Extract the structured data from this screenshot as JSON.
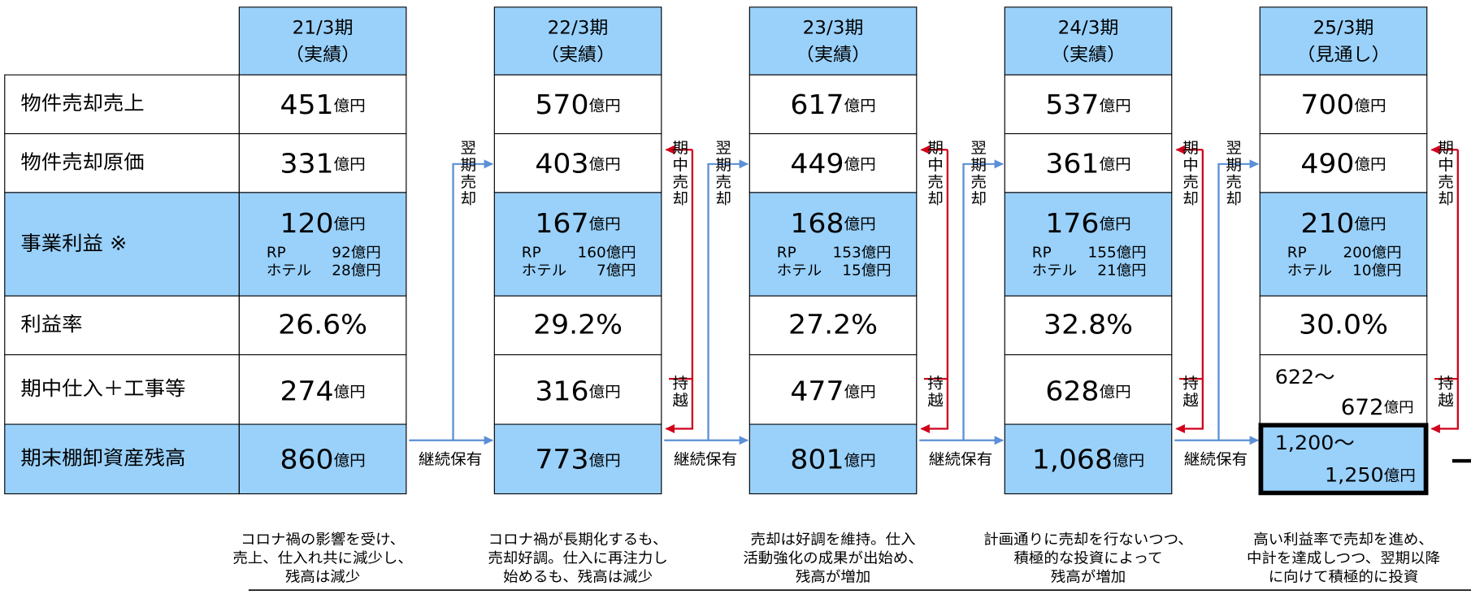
{
  "row_labels": [
    "物件売却売上",
    "物件売却原価",
    "事業利益 ※",
    "利益率",
    "期中仕入＋工事等",
    "期末棚卸資産残高"
  ],
  "flow_labels": {
    "next_sale": "翌期売却",
    "mid_sale": "期中売却",
    "carry": "持越",
    "hold": "継続保有"
  },
  "columns": [
    {
      "period": "21/3期",
      "status": "（実績）",
      "sales": {
        "value": "451",
        "unit": "億円"
      },
      "cost": {
        "value": "331",
        "unit": "億円"
      },
      "profit": {
        "value": "120",
        "unit": "億円",
        "rp_label": "RP",
        "rp_value": "92億円",
        "hotel_label": "ホテル",
        "hotel_value": "28億円"
      },
      "margin": "26.6%",
      "purchase": {
        "value": "274",
        "unit": "億円"
      },
      "stock": {
        "value": "860",
        "unit": "億円"
      },
      "note": [
        "コロナ禍の影響を受け、",
        "売上、仕入れ共に減少し、",
        "残高は減少"
      ]
    },
    {
      "period": "22/3期",
      "status": "（実績）",
      "sales": {
        "value": "570",
        "unit": "億円"
      },
      "cost": {
        "value": "403",
        "unit": "億円"
      },
      "profit": {
        "value": "167",
        "unit": "億円",
        "rp_label": "RP",
        "rp_value": "160億円",
        "hotel_label": "ホテル",
        "hotel_value": "7億円"
      },
      "margin": "29.2%",
      "purchase": {
        "value": "316",
        "unit": "億円"
      },
      "stock": {
        "value": "773",
        "unit": "億円"
      },
      "note": [
        "コロナ禍が長期化するも、",
        "売却好調。仕入に再注力し",
        "始めるも、残高は減少"
      ]
    },
    {
      "period": "23/3期",
      "status": "（実績）",
      "sales": {
        "value": "617",
        "unit": "億円"
      },
      "cost": {
        "value": "449",
        "unit": "億円"
      },
      "profit": {
        "value": "168",
        "unit": "億円",
        "rp_label": "RP",
        "rp_value": "153億円",
        "hotel_label": "ホテル",
        "hotel_value": "15億円"
      },
      "margin": "27.2%",
      "purchase": {
        "value": "477",
        "unit": "億円"
      },
      "stock": {
        "value": "801",
        "unit": "億円"
      },
      "note": [
        "売却は好調を維持。仕入",
        "活動強化の成果が出始め、",
        "残高が増加"
      ]
    },
    {
      "period": "24/3期",
      "status": "（実績）",
      "sales": {
        "value": "537",
        "unit": "億円"
      },
      "cost": {
        "value": "361",
        "unit": "億円"
      },
      "profit": {
        "value": "176",
        "unit": "億円",
        "rp_label": "RP",
        "rp_value": "155億円",
        "hotel_label": "ホテル",
        "hotel_value": "21億円"
      },
      "margin": "32.8%",
      "purchase": {
        "value": "628",
        "unit": "億円"
      },
      "stock": {
        "value": "1,068",
        "unit": "億円"
      },
      "note": [
        "計画通りに売却を行ないつつ、",
        "積極的な投資によって",
        "残高が増加"
      ]
    },
    {
      "period": "25/3期",
      "status": "（見通し）",
      "sales": {
        "value": "700",
        "unit": "億円"
      },
      "cost": {
        "value": "490",
        "unit": "億円"
      },
      "profit": {
        "value": "210",
        "unit": "億円",
        "rp_label": "RP",
        "rp_value": "200億円",
        "hotel_label": "ホテル",
        "hotel_value": "10億円"
      },
      "margin": "30.0%",
      "purchase": {
        "from": "622～",
        "value": "672",
        "unit": "億円"
      },
      "stock": {
        "from": "1,200～",
        "value": "1,250",
        "unit": "億円"
      },
      "note": [
        "高い利益率で売却を進め、",
        "中計を達成しつつ、翌期以降",
        "に向けて積極的に投資"
      ]
    }
  ]
}
